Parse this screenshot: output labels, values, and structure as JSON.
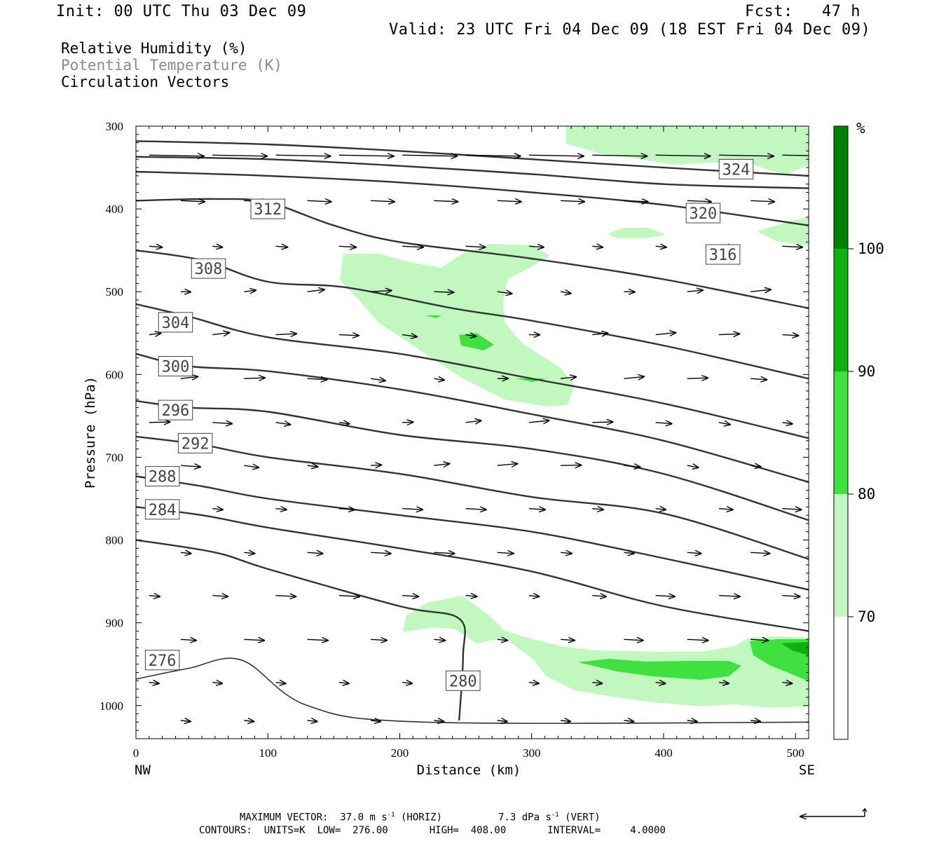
{
  "header": {
    "init": "Init: 00 UTC Thu 03 Dec 09",
    "fcst": "Fcst:   47 h",
    "valid": "Valid: 23 UTC Fri 04 Dec 09 (18 EST Fri 04 Dec 09)"
  },
  "legend": {
    "rh": "Relative Humidity (%)",
    "theta": "Potential Temperature (K)",
    "vectors": "Circulation Vectors"
  },
  "chart_data": {
    "type": "contour",
    "xlabel": "Distance (km)",
    "ylabel": "Pressure (hPa)",
    "xlim": [
      0,
      510
    ],
    "ylim": [
      300,
      1040
    ],
    "y_inverted": true,
    "x_ticks": [
      0,
      100,
      200,
      300,
      400,
      500
    ],
    "y_ticks": [
      300,
      400,
      500,
      600,
      700,
      800,
      900,
      1000
    ],
    "x_end_labels": {
      "left": "NW",
      "right": "SE"
    },
    "theta_contours": [
      {
        "label": "324",
        "pts": [
          [
            0,
            318
          ],
          [
            100,
            322
          ],
          [
            200,
            330
          ],
          [
            300,
            340
          ],
          [
            400,
            350
          ],
          [
            510,
            360
          ]
        ],
        "lab_at": [
          455,
          352
        ]
      },
      {
        "label": "320",
        "pts": [
          [
            0,
            337
          ],
          [
            100,
            340
          ],
          [
            200,
            348
          ],
          [
            300,
            358
          ],
          [
            400,
            370
          ],
          [
            510,
            375
          ]
        ],
        "lab_at": [
          430,
          405
        ]
      },
      {
        "label": "316",
        "pts": [
          [
            0,
            355
          ],
          [
            100,
            360
          ],
          [
            200,
            368
          ],
          [
            300,
            380
          ],
          [
            400,
            395
          ],
          [
            510,
            420
          ]
        ],
        "lab_at": [
          445,
          455
        ]
      },
      {
        "label": "312",
        "pts": [
          [
            0,
            390
          ],
          [
            60,
            388
          ],
          [
            100,
            392
          ],
          [
            150,
            420
          ],
          [
            200,
            440
          ],
          [
            300,
            460
          ],
          [
            400,
            485
          ],
          [
            510,
            520
          ]
        ],
        "lab_at": [
          100,
          400
        ]
      },
      {
        "label": "308",
        "pts": [
          [
            0,
            450
          ],
          [
            50,
            462
          ],
          [
            100,
            488
          ],
          [
            160,
            495
          ],
          [
            240,
            520
          ],
          [
            300,
            535
          ],
          [
            400,
            565
          ],
          [
            510,
            605
          ]
        ],
        "lab_at": [
          55,
          472
        ]
      },
      {
        "label": "304",
        "pts": [
          [
            0,
            515
          ],
          [
            40,
            530
          ],
          [
            100,
            555
          ],
          [
            200,
            575
          ],
          [
            300,
            605
          ],
          [
            400,
            635
          ],
          [
            510,
            677
          ]
        ],
        "lab_at": [
          30,
          537
        ]
      },
      {
        "label": "300",
        "pts": [
          [
            0,
            575
          ],
          [
            40,
            590
          ],
          [
            100,
            596
          ],
          [
            200,
            618
          ],
          [
            300,
            648
          ],
          [
            400,
            680
          ],
          [
            510,
            730
          ]
        ],
        "lab_at": [
          30,
          590
        ]
      },
      {
        "label": "296",
        "pts": [
          [
            0,
            632
          ],
          [
            40,
            640
          ],
          [
            100,
            645
          ],
          [
            200,
            673
          ],
          [
            300,
            690
          ],
          [
            400,
            720
          ],
          [
            510,
            776
          ]
        ],
        "lab_at": [
          30,
          643
        ]
      },
      {
        "label": "292",
        "pts": [
          [
            0,
            675
          ],
          [
            50,
            685
          ],
          [
            100,
            700
          ],
          [
            200,
            720
          ],
          [
            300,
            748
          ],
          [
            400,
            768
          ],
          [
            510,
            823
          ]
        ],
        "lab_at": [
          45,
          683
        ]
      },
      {
        "label": "288",
        "pts": [
          [
            0,
            723
          ],
          [
            50,
            735
          ],
          [
            100,
            750
          ],
          [
            200,
            770
          ],
          [
            300,
            790
          ],
          [
            400,
            822
          ],
          [
            510,
            860
          ]
        ],
        "lab_at": [
          20,
          723
        ]
      },
      {
        "label": "284",
        "pts": [
          [
            0,
            760
          ],
          [
            50,
            770
          ],
          [
            100,
            785
          ],
          [
            200,
            810
          ],
          [
            300,
            838
          ],
          [
            400,
            880
          ],
          [
            510,
            910
          ]
        ],
        "lab_at": [
          20,
          763
        ]
      },
      {
        "label": "280",
        "pts": [
          [
            0,
            800
          ],
          [
            60,
            815
          ],
          [
            100,
            835
          ],
          [
            200,
            880
          ],
          [
            245,
            895
          ],
          [
            248,
            940
          ],
          [
            245,
            1018
          ]
        ],
        "lab_at": [
          248,
          970
        ]
      },
      {
        "label": "276",
        "pts": [
          [
            0,
            968
          ],
          [
            40,
            955
          ],
          [
            80,
            945
          ],
          [
            130,
            1000
          ],
          [
            220,
            1020
          ],
          [
            510,
            1020
          ]
        ],
        "lab_at": [
          20,
          945
        ]
      }
    ],
    "rh_fill_levels": [
      70,
      80,
      90,
      100
    ],
    "rh_colors": [
      "#ffffff",
      "#c0f8c0",
      "#40e040",
      "#10b010",
      "#008000"
    ],
    "colorbar": {
      "unit": "%",
      "labels": [
        "100",
        "90",
        "80",
        "70"
      ]
    }
  },
  "footer": {
    "max_vector_a": "MAXIMUM VECTOR:  37.0 m s",
    "max_vector_b": " (HORIZ)",
    "max_vector_c": "7.3 dPa s",
    "max_vector_d": " (VERT)",
    "sup": "-1",
    "contours": "CONTOURS:  UNITS=K  LOW=  276.00       HIGH=  408.00       INTERVAL=     4.0000"
  }
}
